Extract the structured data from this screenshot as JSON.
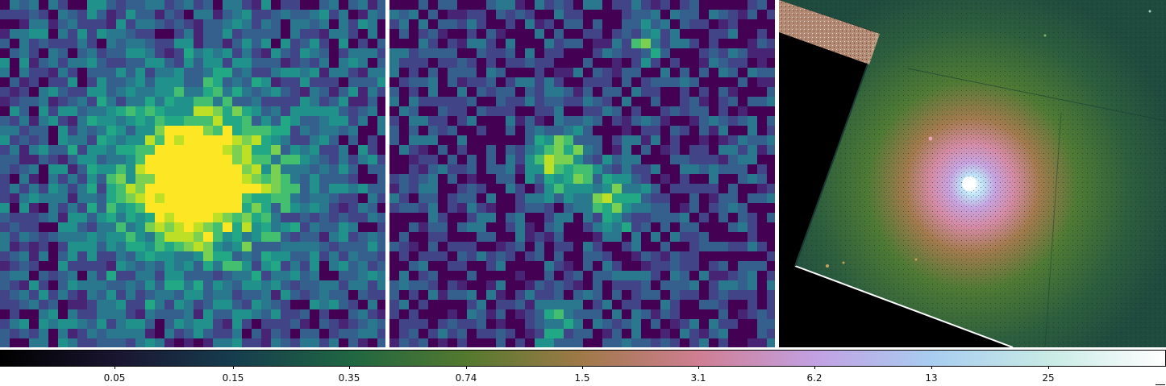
{
  "panels": [
    {
      "name": "panel-left",
      "colormap": "viridis",
      "content": "pixelated compact source with bright yellow peak"
    },
    {
      "name": "panel-middle",
      "colormap": "viridis",
      "content": "pixelated residual map with scattered bright knots"
    },
    {
      "name": "panel-right",
      "colormap": "cubehelix",
      "content": "rotated galaxy image with bright core on green background"
    }
  ],
  "colorbar": {
    "ticks": [
      "0.05",
      "0.15",
      "0.35",
      "0.74",
      "1.5",
      "3.1",
      "6.2",
      "13",
      "25"
    ],
    "gradient_colors": [
      "#000000",
      "#1a1530",
      "#163d4e",
      "#1f6642",
      "#54792f",
      "#a07949",
      "#d07e93",
      "#c2a1e3",
      "#a8cdf0",
      "#c8ebe5",
      "#ffffff"
    ]
  }
}
